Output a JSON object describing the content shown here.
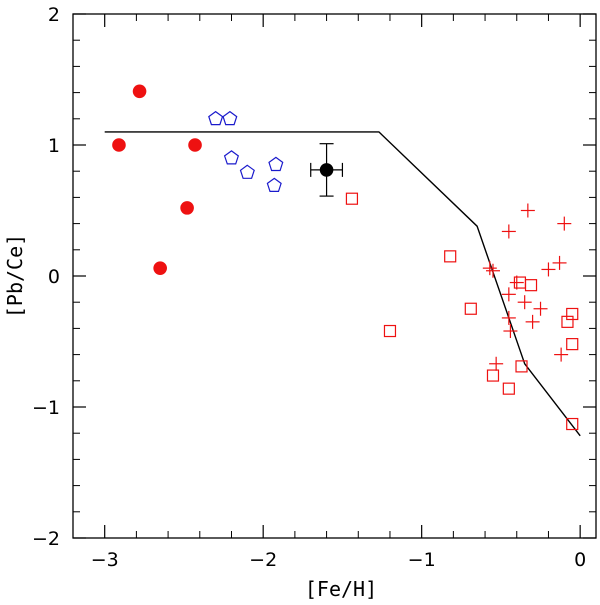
{
  "chart_data": {
    "type": "scatter",
    "xlabel": "[Fe/H]",
    "ylabel": "[Pb/Ce]",
    "xlim": [
      -3.2,
      0.1
    ],
    "ylim": [
      -2,
      2
    ],
    "x_ticks": [
      {
        "value": -3,
        "label": "−3"
      },
      {
        "value": -2,
        "label": "−2"
      },
      {
        "value": -1,
        "label": "−1"
      },
      {
        "value": 0,
        "label": "0"
      }
    ],
    "y_ticks": [
      {
        "value": -2,
        "label": "−2"
      },
      {
        "value": -1,
        "label": "−1"
      },
      {
        "value": 0,
        "label": "0"
      },
      {
        "value": 1,
        "label": "1"
      },
      {
        "value": 2,
        "label": "2"
      }
    ],
    "colors": {
      "red": "#ee1111",
      "blue": "#1a1acc",
      "black": "#000000"
    },
    "model_line": {
      "name": "model",
      "points": [
        [
          -3.0,
          1.1
        ],
        [
          -1.27,
          1.1
        ],
        [
          -0.65,
          0.38
        ],
        [
          -0.35,
          -0.67
        ],
        [
          0.0,
          -1.22
        ]
      ]
    },
    "series": [
      {
        "name": "red filled circles",
        "marker": "filled-circle",
        "color": "red",
        "points": [
          [
            -2.78,
            1.41
          ],
          [
            -2.91,
            1.0
          ],
          [
            -2.43,
            1.0
          ],
          [
            -2.48,
            0.52
          ],
          [
            -2.65,
            0.06
          ]
        ]
      },
      {
        "name": "blue open pentagons",
        "marker": "open-pentagon",
        "color": "blue",
        "points": [
          [
            -2.3,
            1.2
          ],
          [
            -2.21,
            1.2
          ],
          [
            -2.2,
            0.9
          ],
          [
            -2.1,
            0.79
          ],
          [
            -1.92,
            0.85
          ],
          [
            -1.93,
            0.69
          ]
        ]
      },
      {
        "name": "black point with error bars",
        "marker": "filled-circle",
        "color": "black",
        "points": [
          [
            -1.6,
            0.81
          ]
        ],
        "xerr": 0.1,
        "yerr": 0.2
      },
      {
        "name": "red open squares",
        "marker": "open-square",
        "color": "red",
        "points": [
          [
            -1.44,
            0.59
          ],
          [
            -1.2,
            -0.42
          ],
          [
            -0.82,
            0.15
          ],
          [
            -0.69,
            -0.25
          ],
          [
            -0.38,
            -0.05
          ],
          [
            -0.31,
            -0.07
          ],
          [
            -0.05,
            -0.29
          ],
          [
            -0.08,
            -0.35
          ],
          [
            -0.05,
            -0.52
          ],
          [
            -0.55,
            -0.76
          ],
          [
            -0.37,
            -0.69
          ],
          [
            -0.45,
            -0.86
          ],
          [
            -0.05,
            -1.13
          ]
        ]
      },
      {
        "name": "red plus signs",
        "marker": "plus",
        "color": "red",
        "points": [
          [
            -0.33,
            0.5
          ],
          [
            -0.45,
            0.34
          ],
          [
            -0.1,
            0.4
          ],
          [
            -0.57,
            0.06
          ],
          [
            -0.55,
            0.04
          ],
          [
            -0.13,
            0.1
          ],
          [
            -0.2,
            0.05
          ],
          [
            -0.4,
            -0.05
          ],
          [
            -0.45,
            -0.14
          ],
          [
            -0.35,
            -0.2
          ],
          [
            -0.25,
            -0.25
          ],
          [
            -0.3,
            -0.35
          ],
          [
            -0.45,
            -0.32
          ],
          [
            -0.44,
            -0.42
          ],
          [
            -0.53,
            -0.67
          ],
          [
            -0.12,
            -0.6
          ]
        ]
      }
    ]
  }
}
